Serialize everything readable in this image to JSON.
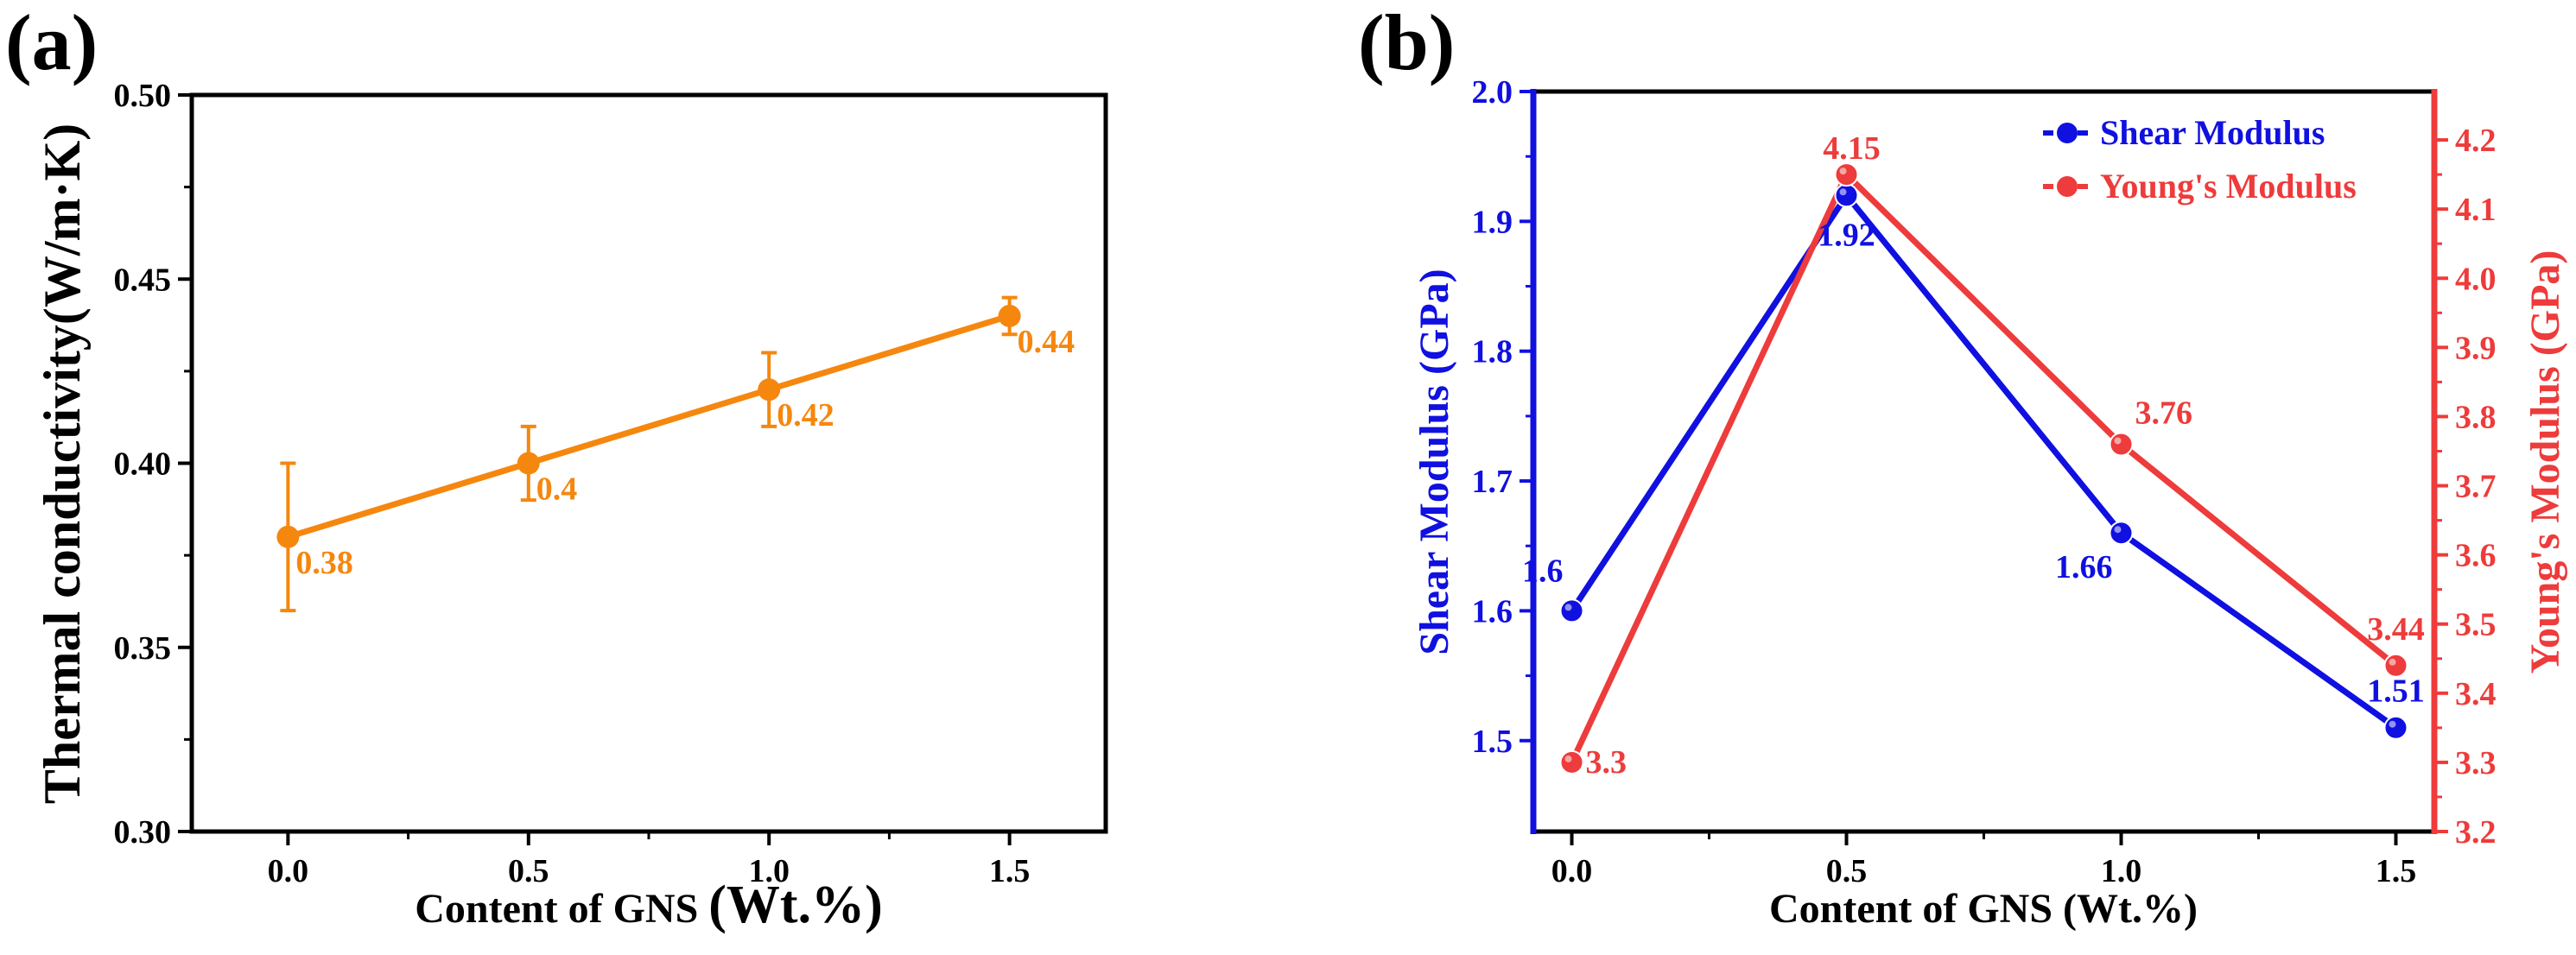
{
  "chart_data": [
    {
      "panel_label": "(a)",
      "type": "line",
      "xlabel_main": "Content of GNS",
      "xlabel_unit": "(Wt.%)",
      "ylabel": "Thermal conductivity(W/m·K)",
      "xlim": [
        -0.2,
        1.7
      ],
      "ylim": [
        0.3,
        0.5
      ],
      "xticks": [
        0.0,
        0.5,
        1.0,
        1.5
      ],
      "xtick_labels": [
        "0.0",
        "0.5",
        "1.0",
        "1.5"
      ],
      "yticks": [
        0.3,
        0.35,
        0.4,
        0.45,
        0.5
      ],
      "ytick_labels": [
        "0.30",
        "0.35",
        "0.40",
        "0.45",
        "0.50"
      ],
      "color": "#F5870F",
      "series": [
        {
          "name": "Thermal conductivity",
          "x": [
            0.0,
            0.5,
            1.0,
            1.5
          ],
          "y": [
            0.38,
            0.4,
            0.42,
            0.44
          ],
          "err": [
            0.02,
            0.01,
            0.01,
            0.005
          ],
          "labels": [
            "0.38",
            "0.4",
            "0.42",
            "0.44"
          ]
        }
      ]
    },
    {
      "panel_label": "(b)",
      "type": "line",
      "xlabel": "Content of GNS (Wt.%)",
      "ylabel_left": "Shear Modulus (GPa)",
      "ylabel_right": "Young's Modulus (GPa)",
      "xlim": [
        -0.07,
        1.57
      ],
      "ylim_left": [
        1.43,
        2.0
      ],
      "ylim_right": [
        3.2,
        4.27
      ],
      "xticks": [
        0.0,
        0.5,
        1.0,
        1.5
      ],
      "xtick_labels": [
        "0.0",
        "0.5",
        "1.0",
        "1.5"
      ],
      "yticks_left": [
        1.5,
        1.6,
        1.7,
        1.8,
        1.9,
        2.0
      ],
      "ytick_labels_left": [
        "1.5",
        "1.6",
        "1.7",
        "1.8",
        "1.9",
        "2.0"
      ],
      "yticks_right": [
        3.2,
        3.3,
        3.4,
        3.5,
        3.6,
        3.7,
        3.8,
        3.9,
        4.0,
        4.1,
        4.2
      ],
      "ytick_labels_right": [
        "3.2",
        "3.3",
        "3.4",
        "3.5",
        "3.6",
        "3.7",
        "3.8",
        "3.9",
        "4.0",
        "4.1",
        "4.2"
      ],
      "legend_position": "top-right",
      "series": [
        {
          "name": "Shear Modulus",
          "axis": "left",
          "color": "#1010E0",
          "x": [
            0.0,
            0.5,
            1.0,
            1.5
          ],
          "y": [
            1.6,
            1.92,
            1.66,
            1.51
          ],
          "labels": [
            "1.6",
            "1.92",
            "1.66",
            "1.51"
          ]
        },
        {
          "name": "Young's Modulus",
          "axis": "right",
          "color": "#EE3B3B",
          "x": [
            0.0,
            0.5,
            1.0,
            1.5
          ],
          "y": [
            3.3,
            4.15,
            3.76,
            3.44
          ],
          "labels": [
            "3.3",
            "4.15",
            "3.76",
            "3.44"
          ]
        }
      ]
    }
  ]
}
